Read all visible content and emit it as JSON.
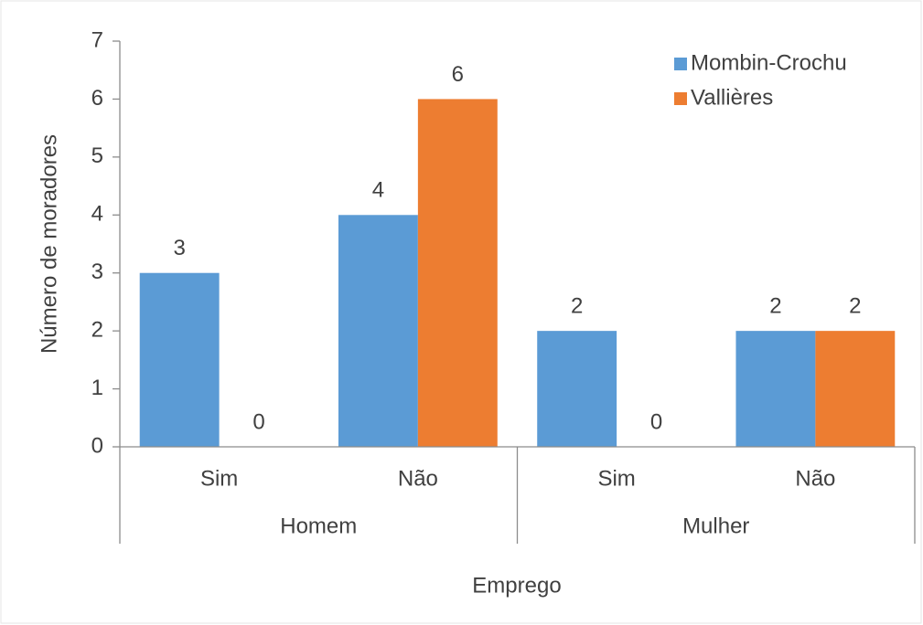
{
  "chart_data": {
    "type": "bar",
    "y_label": "Número de moradores",
    "x_label": "Emprego",
    "categories": [
      "Sim",
      "Não",
      "Sim",
      "Não"
    ],
    "category_groups": [
      "Homem",
      "Mulher"
    ],
    "series": [
      {
        "name": "Mombin-Crochu",
        "color": "#5b9bd5",
        "values": [
          3,
          4,
          2,
          2
        ]
      },
      {
        "name": "Vallières",
        "color": "#ed7d31",
        "values": [
          0,
          6,
          0,
          2
        ]
      }
    ],
    "ylim": [
      0,
      7
    ],
    "yticks": [
      0,
      1,
      2,
      3,
      4,
      5,
      6,
      7
    ],
    "grid": false,
    "legend": "upper right",
    "data_labels": true
  }
}
